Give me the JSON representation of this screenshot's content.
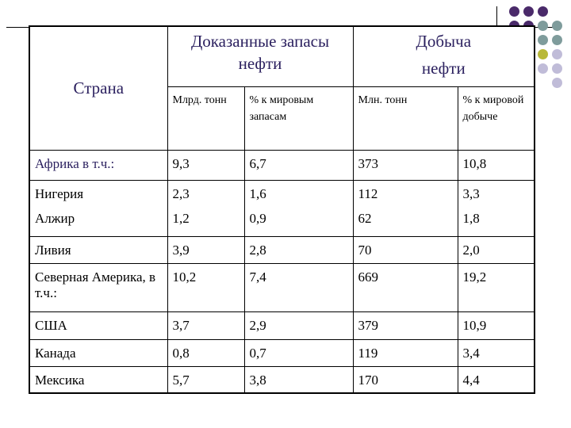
{
  "decor": {
    "dot_colors": {
      "purple": "#4a2a6a",
      "teal": "#7f9c9c",
      "olive": "#b8b838",
      "lavender": "#c0bcd8"
    }
  },
  "table": {
    "header": {
      "country": "Страна",
      "reserves": "Доказанные запасы нефти",
      "production_line1": "Добыча",
      "production_line2": "нефти",
      "sub": [
        "Млрд. тонн",
        "% к мировым запасам",
        "Млн. тонн",
        "% к мировой добыче"
      ]
    },
    "rows": [
      {
        "country": "Африка в т.ч.:",
        "values": [
          "9,3",
          "6,7",
          "373",
          "10,8"
        ]
      },
      {
        "country": "Нигерия",
        "values": [
          "2,3",
          "1,6",
          "112",
          "3,3"
        ]
      },
      {
        "country": "Алжир",
        "values": [
          "1,2",
          "0,9",
          "62",
          "1,8"
        ]
      },
      {
        "country": "Ливия",
        "values": [
          "3,9",
          "2,8",
          "70",
          "2,0"
        ]
      },
      {
        "country": "Северная Америка, в т.ч.:",
        "values": [
          "10,2",
          "7,4",
          "669",
          "19,2"
        ]
      },
      {
        "country": "США",
        "values": [
          "3,7",
          "2,9",
          "379",
          "10,9"
        ]
      },
      {
        "country": "Канада",
        "values": [
          "0,8",
          "0,7",
          "119",
          "3,4"
        ]
      },
      {
        "country": "Мексика",
        "values": [
          "5,7",
          "3,8",
          "170",
          "4,4"
        ]
      }
    ]
  }
}
